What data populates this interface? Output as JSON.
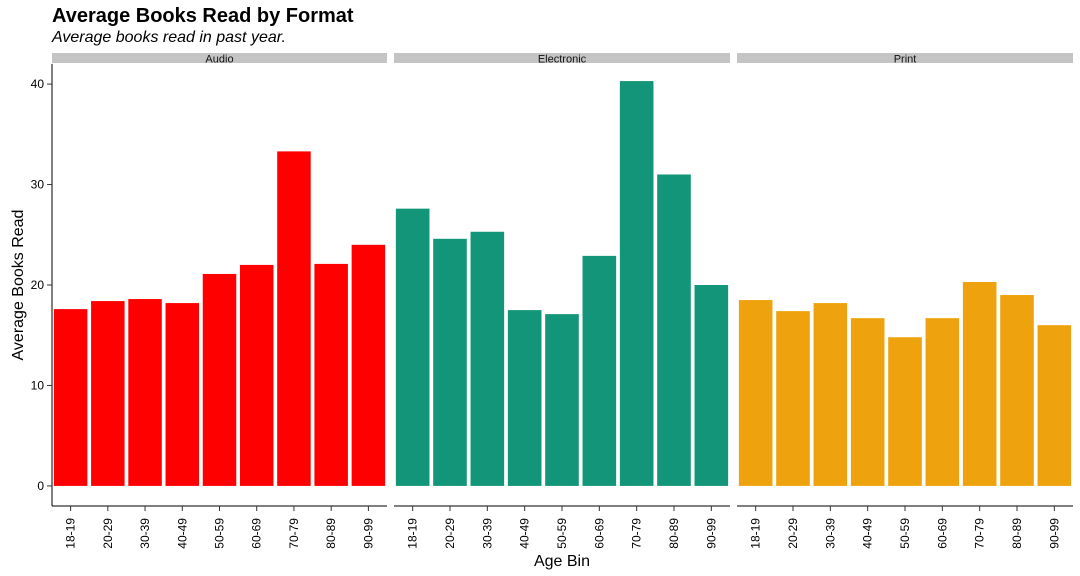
{
  "chart_data": {
    "type": "bar",
    "title": "Average Books Read by Format",
    "subtitle": "Average books read in past year.",
    "xlabel": "Age Bin",
    "ylabel": "Average Books Read",
    "ylim": [
      -2,
      42
    ],
    "yticks": [
      0,
      10,
      20,
      30,
      40
    ],
    "grid": false,
    "categories": [
      "18-19",
      "20-29",
      "30-39",
      "40-49",
      "50-59",
      "60-69",
      "70-79",
      "80-89",
      "90-99"
    ],
    "series": [
      {
        "name": "Audio",
        "color": "#FF0000",
        "values": [
          17.6,
          18.4,
          18.6,
          18.2,
          21.1,
          22.0,
          33.3,
          22.1,
          24.0
        ]
      },
      {
        "name": "Electronic",
        "color": "#139579",
        "values": [
          27.6,
          24.6,
          25.3,
          17.5,
          17.1,
          22.9,
          40.3,
          31.0,
          20.0
        ]
      },
      {
        "name": "Print",
        "color": "#EEA20D",
        "values": [
          18.5,
          17.4,
          18.2,
          16.7,
          14.8,
          16.7,
          20.3,
          19.0,
          16.0
        ]
      }
    ],
    "strip_color": "#C4C4C4"
  }
}
